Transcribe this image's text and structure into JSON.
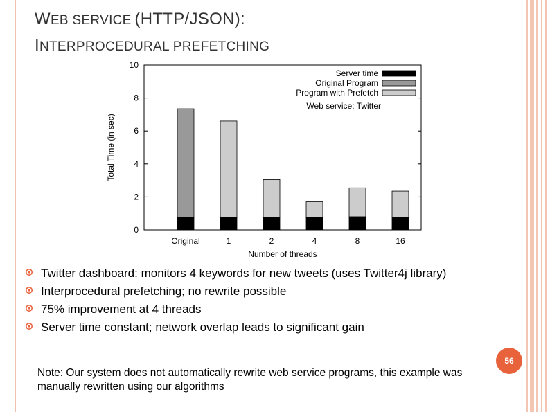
{
  "slide": {
    "title_line1_prefix_cap": "W",
    "title_line1_prefix_rest": "EB SERVICE",
    "title_line1_paren": "(HTTP/JSON):",
    "title_line2_cap": "I",
    "title_line2_rest": "NTERPROCEDURAL PREFETCHING",
    "bullets": [
      "Twitter dashboard: monitors 4 keywords for new tweets (uses Twitter4j library)",
      "Interprocedural prefetching; no rewrite possible",
      "75% improvement at 4 threads",
      "Server time constant; network overlap leads to significant gain"
    ],
    "note": "Note: Our system does not automatically rewrite web service programs, this example was manually rewritten using our algorithms",
    "page_number": "56",
    "colors": {
      "accent": "#e8623c",
      "decor": "#f2c6b2"
    }
  },
  "chart_data": {
    "type": "bar",
    "stacked": true,
    "categories": [
      "Original",
      "1",
      "2",
      "4",
      "8",
      "16"
    ],
    "series": [
      {
        "name": "Server time",
        "color": "#000000",
        "values": [
          0.75,
          0.75,
          0.75,
          0.75,
          0.8,
          0.75
        ]
      },
      {
        "name": "Original Program",
        "color": "#999999",
        "values": [
          6.6,
          0,
          0,
          0,
          0,
          0
        ]
      },
      {
        "name": "Program with Prefetch",
        "color": "#cccccc",
        "values": [
          0,
          5.85,
          2.3,
          0.95,
          1.75,
          1.6
        ]
      }
    ],
    "legend_title": "Web service: Twitter",
    "legend_position": "top-right",
    "xlabel": "Number of threads",
    "ylabel": "Total Time (in sec)",
    "ylim": [
      0,
      10
    ],
    "yticks": [
      0,
      2,
      4,
      6,
      8,
      10
    ],
    "grid": false
  }
}
